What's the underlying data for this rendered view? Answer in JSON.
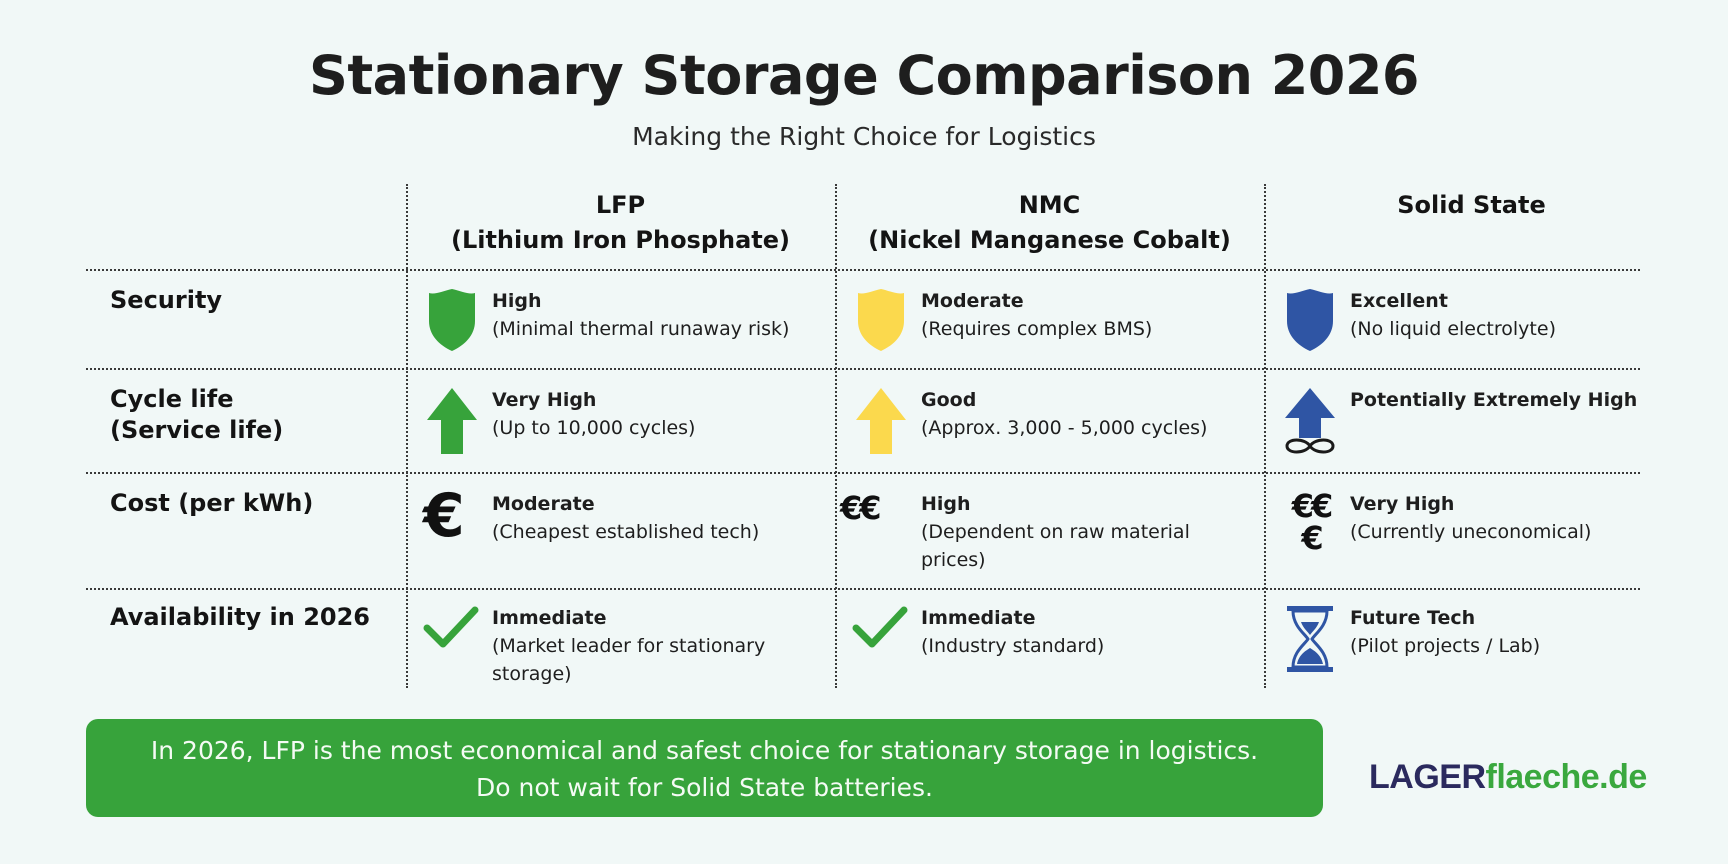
{
  "header": {
    "title": "Stationary Storage Comparison 2026",
    "subtitle": "Making the Right Choice for Logistics"
  },
  "columns": [
    {
      "line1": "LFP",
      "line2": "(Lithium Iron Phosphate)",
      "color": "#37a33b"
    },
    {
      "line1": "NMC",
      "line2": "(Nickel Manganese Cobalt)",
      "color": "#fbd94d"
    },
    {
      "line1": "Solid State",
      "line2": "",
      "color": "#2f55a4"
    }
  ],
  "rows": [
    {
      "label1": "Security",
      "label2": "",
      "cells": [
        {
          "icon": "shield-icon",
          "title": "High",
          "detail": "(Minimal thermal runaway risk)"
        },
        {
          "icon": "shield-icon",
          "title": "Moderate",
          "detail": "(Requires complex BMS)"
        },
        {
          "icon": "shield-icon",
          "title": "Excellent",
          "detail": "(No liquid electrolyte)"
        }
      ]
    },
    {
      "label1": "Cycle life",
      "label2": "(Service life)",
      "cells": [
        {
          "icon": "arrow-up-icon",
          "title": "Very High",
          "detail": "(Up to 10,000 cycles)"
        },
        {
          "icon": "arrow-up-icon",
          "title": "Good",
          "detail": "(Approx. 3,000 - 5,000 cycles)"
        },
        {
          "icon": "arrow-up-infinity-icon",
          "title": "Potentially Extremely High",
          "detail": ""
        }
      ]
    },
    {
      "label1": "Cost (per kWh)",
      "label2": "",
      "cells": [
        {
          "icon": "euro-icon",
          "title": "Moderate",
          "detail": "(Cheapest established tech)"
        },
        {
          "icon": "double-euro-icon",
          "title": "High",
          "detail": "(Dependent on raw material prices)"
        },
        {
          "icon": "triple-euro-icon",
          "title": "Very High",
          "detail": "(Currently uneconomical)"
        }
      ]
    },
    {
      "label1": "Availability in 2026",
      "label2": "",
      "cells": [
        {
          "icon": "checkmark-icon",
          "title": "Immediate",
          "detail": "(Market leader for stationary storage)"
        },
        {
          "icon": "checkmark-icon",
          "title": "Immediate",
          "detail": "(Industry standard)"
        },
        {
          "icon": "hourglass-icon",
          "title": "Future Tech",
          "detail": "(Pilot projects / Lab)"
        }
      ]
    }
  ],
  "banner": {
    "line1": "In 2026, LFP is the most economical and safest choice for stationary storage in logistics.",
    "line2": "Do not wait for Solid State batteries."
  },
  "logo": {
    "part1": "LAGER",
    "part2": "flaeche.de"
  },
  "symbols": {
    "euro": "€",
    "euro2": "€€",
    "euro3a": "€€",
    "euro3b": "€"
  }
}
